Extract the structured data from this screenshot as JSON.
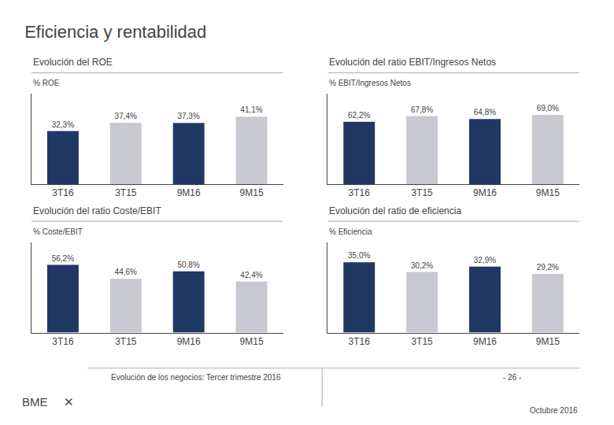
{
  "title": "Eficiencia y rentabilidad",
  "annotations": [
    "Evolución de los negocios: Tercer trimestre 2016",
    "- 26 -",
    "Octubre 2016",
    "BME",
    "✕"
  ],
  "chart_data": [
    {
      "type": "bar",
      "title": "Evolución del ROE",
      "ylabel": "% ROE",
      "categories": [
        "3T16",
        "3T15",
        "9M16",
        "9M15"
      ],
      "values": [
        32.3,
        37.4,
        37.3,
        41.1
      ],
      "value_labels": [
        "32,3%",
        "37,4%",
        "37,3%",
        "41,1%"
      ],
      "colors": [
        "#1f3864",
        "#c8c8d0",
        "#1f3864",
        "#c8c8d0"
      ],
      "ylim": [
        0,
        55
      ],
      "data_labels": true,
      "tick_labels": "x",
      "grid": false
    },
    {
      "type": "bar",
      "title": "Evolución del ratio EBIT/Ingresos Netos",
      "ylabel": "% EBIT/Ingresos Netos",
      "categories": [
        "3T16",
        "3T15",
        "9M16",
        "9M15"
      ],
      "values": [
        62.2,
        67.8,
        64.8,
        69.0
      ],
      "value_labels": [
        "62,2%",
        "67,8%",
        "64,8%",
        "69,0%"
      ],
      "colors": [
        "#1f3864",
        "#c8c8d0",
        "#1f3864",
        "#c8c8d0"
      ],
      "ylim": [
        0,
        90
      ],
      "data_labels": true,
      "tick_labels": "x",
      "grid": false
    },
    {
      "type": "bar",
      "title": "Evolución del ratio Coste/EBIT",
      "ylabel": "% Coste/EBIT",
      "categories": [
        "3T16",
        "3T15",
        "9M16",
        "9M15"
      ],
      "values": [
        56.2,
        44.6,
        50.8,
        42.4
      ],
      "value_labels": [
        "56,2%",
        "44,6%",
        "50,8%",
        "42,4%"
      ],
      "colors": [
        "#1f3864",
        "#c8c8d0",
        "#1f3864",
        "#c8c8d0"
      ],
      "ylim": [
        0,
        75
      ],
      "data_labels": true,
      "tick_labels": "x",
      "grid": false
    },
    {
      "type": "bar",
      "title": "Evolución del ratio de eficiencia",
      "ylabel": "% Eficiencia",
      "categories": [
        "3T16",
        "3T15",
        "9M16",
        "9M15"
      ],
      "values": [
        35.0,
        30.2,
        32.9,
        29.2
      ],
      "value_labels": [
        "35,0%",
        "30,2%",
        "32,9%",
        "29,2%"
      ],
      "colors": [
        "#1f3864",
        "#c8c8d0",
        "#1f3864",
        "#c8c8d0"
      ],
      "ylim": [
        0,
        45
      ],
      "data_labels": true,
      "tick_labels": "x",
      "grid": false
    }
  ]
}
